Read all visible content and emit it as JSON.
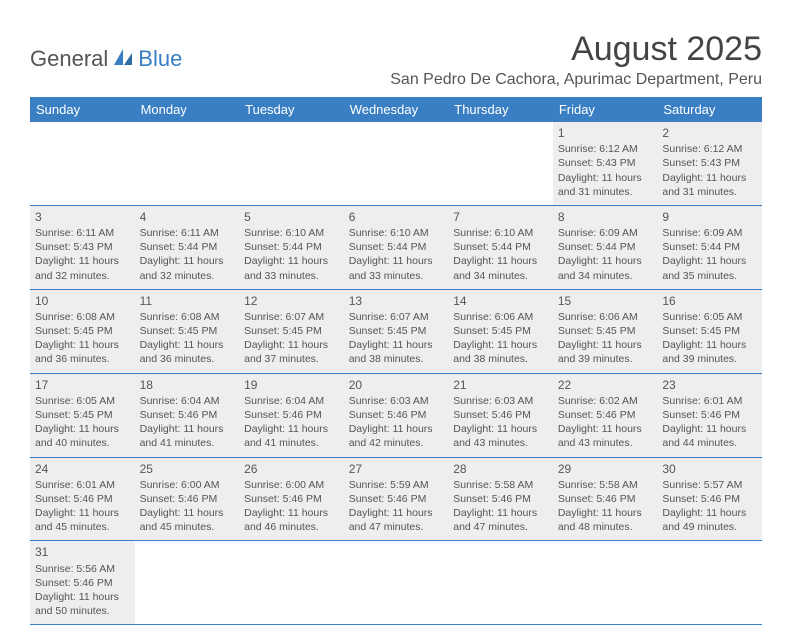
{
  "logo": {
    "text1": "General",
    "text2": "Blue"
  },
  "title": "August 2025",
  "location": "San Pedro De Cachora, Apurimac Department, Peru",
  "header_bg": "#3a7fc4",
  "cell_bg": "#eeeeee",
  "divider_color": "#3a7fc4",
  "days": [
    "Sunday",
    "Monday",
    "Tuesday",
    "Wednesday",
    "Thursday",
    "Friday",
    "Saturday"
  ],
  "weeks": [
    [
      null,
      null,
      null,
      null,
      null,
      {
        "n": "1",
        "sr": "Sunrise: 6:12 AM",
        "ss": "Sunset: 5:43 PM",
        "d1": "Daylight: 11 hours",
        "d2": "and 31 minutes."
      },
      {
        "n": "2",
        "sr": "Sunrise: 6:12 AM",
        "ss": "Sunset: 5:43 PM",
        "d1": "Daylight: 11 hours",
        "d2": "and 31 minutes."
      }
    ],
    [
      {
        "n": "3",
        "sr": "Sunrise: 6:11 AM",
        "ss": "Sunset: 5:43 PM",
        "d1": "Daylight: 11 hours",
        "d2": "and 32 minutes."
      },
      {
        "n": "4",
        "sr": "Sunrise: 6:11 AM",
        "ss": "Sunset: 5:44 PM",
        "d1": "Daylight: 11 hours",
        "d2": "and 32 minutes."
      },
      {
        "n": "5",
        "sr": "Sunrise: 6:10 AM",
        "ss": "Sunset: 5:44 PM",
        "d1": "Daylight: 11 hours",
        "d2": "and 33 minutes."
      },
      {
        "n": "6",
        "sr": "Sunrise: 6:10 AM",
        "ss": "Sunset: 5:44 PM",
        "d1": "Daylight: 11 hours",
        "d2": "and 33 minutes."
      },
      {
        "n": "7",
        "sr": "Sunrise: 6:10 AM",
        "ss": "Sunset: 5:44 PM",
        "d1": "Daylight: 11 hours",
        "d2": "and 34 minutes."
      },
      {
        "n": "8",
        "sr": "Sunrise: 6:09 AM",
        "ss": "Sunset: 5:44 PM",
        "d1": "Daylight: 11 hours",
        "d2": "and 34 minutes."
      },
      {
        "n": "9",
        "sr": "Sunrise: 6:09 AM",
        "ss": "Sunset: 5:44 PM",
        "d1": "Daylight: 11 hours",
        "d2": "and 35 minutes."
      }
    ],
    [
      {
        "n": "10",
        "sr": "Sunrise: 6:08 AM",
        "ss": "Sunset: 5:45 PM",
        "d1": "Daylight: 11 hours",
        "d2": "and 36 minutes."
      },
      {
        "n": "11",
        "sr": "Sunrise: 6:08 AM",
        "ss": "Sunset: 5:45 PM",
        "d1": "Daylight: 11 hours",
        "d2": "and 36 minutes."
      },
      {
        "n": "12",
        "sr": "Sunrise: 6:07 AM",
        "ss": "Sunset: 5:45 PM",
        "d1": "Daylight: 11 hours",
        "d2": "and 37 minutes."
      },
      {
        "n": "13",
        "sr": "Sunrise: 6:07 AM",
        "ss": "Sunset: 5:45 PM",
        "d1": "Daylight: 11 hours",
        "d2": "and 38 minutes."
      },
      {
        "n": "14",
        "sr": "Sunrise: 6:06 AM",
        "ss": "Sunset: 5:45 PM",
        "d1": "Daylight: 11 hours",
        "d2": "and 38 minutes."
      },
      {
        "n": "15",
        "sr": "Sunrise: 6:06 AM",
        "ss": "Sunset: 5:45 PM",
        "d1": "Daylight: 11 hours",
        "d2": "and 39 minutes."
      },
      {
        "n": "16",
        "sr": "Sunrise: 6:05 AM",
        "ss": "Sunset: 5:45 PM",
        "d1": "Daylight: 11 hours",
        "d2": "and 39 minutes."
      }
    ],
    [
      {
        "n": "17",
        "sr": "Sunrise: 6:05 AM",
        "ss": "Sunset: 5:45 PM",
        "d1": "Daylight: 11 hours",
        "d2": "and 40 minutes."
      },
      {
        "n": "18",
        "sr": "Sunrise: 6:04 AM",
        "ss": "Sunset: 5:46 PM",
        "d1": "Daylight: 11 hours",
        "d2": "and 41 minutes."
      },
      {
        "n": "19",
        "sr": "Sunrise: 6:04 AM",
        "ss": "Sunset: 5:46 PM",
        "d1": "Daylight: 11 hours",
        "d2": "and 41 minutes."
      },
      {
        "n": "20",
        "sr": "Sunrise: 6:03 AM",
        "ss": "Sunset: 5:46 PM",
        "d1": "Daylight: 11 hours",
        "d2": "and 42 minutes."
      },
      {
        "n": "21",
        "sr": "Sunrise: 6:03 AM",
        "ss": "Sunset: 5:46 PM",
        "d1": "Daylight: 11 hours",
        "d2": "and 43 minutes."
      },
      {
        "n": "22",
        "sr": "Sunrise: 6:02 AM",
        "ss": "Sunset: 5:46 PM",
        "d1": "Daylight: 11 hours",
        "d2": "and 43 minutes."
      },
      {
        "n": "23",
        "sr": "Sunrise: 6:01 AM",
        "ss": "Sunset: 5:46 PM",
        "d1": "Daylight: 11 hours",
        "d2": "and 44 minutes."
      }
    ],
    [
      {
        "n": "24",
        "sr": "Sunrise: 6:01 AM",
        "ss": "Sunset: 5:46 PM",
        "d1": "Daylight: 11 hours",
        "d2": "and 45 minutes."
      },
      {
        "n": "25",
        "sr": "Sunrise: 6:00 AM",
        "ss": "Sunset: 5:46 PM",
        "d1": "Daylight: 11 hours",
        "d2": "and 45 minutes."
      },
      {
        "n": "26",
        "sr": "Sunrise: 6:00 AM",
        "ss": "Sunset: 5:46 PM",
        "d1": "Daylight: 11 hours",
        "d2": "and 46 minutes."
      },
      {
        "n": "27",
        "sr": "Sunrise: 5:59 AM",
        "ss": "Sunset: 5:46 PM",
        "d1": "Daylight: 11 hours",
        "d2": "and 47 minutes."
      },
      {
        "n": "28",
        "sr": "Sunrise: 5:58 AM",
        "ss": "Sunset: 5:46 PM",
        "d1": "Daylight: 11 hours",
        "d2": "and 47 minutes."
      },
      {
        "n": "29",
        "sr": "Sunrise: 5:58 AM",
        "ss": "Sunset: 5:46 PM",
        "d1": "Daylight: 11 hours",
        "d2": "and 48 minutes."
      },
      {
        "n": "30",
        "sr": "Sunrise: 5:57 AM",
        "ss": "Sunset: 5:46 PM",
        "d1": "Daylight: 11 hours",
        "d2": "and 49 minutes."
      }
    ],
    [
      {
        "n": "31",
        "sr": "Sunrise: 5:56 AM",
        "ss": "Sunset: 5:46 PM",
        "d1": "Daylight: 11 hours",
        "d2": "and 50 minutes."
      },
      null,
      null,
      null,
      null,
      null,
      null
    ]
  ]
}
